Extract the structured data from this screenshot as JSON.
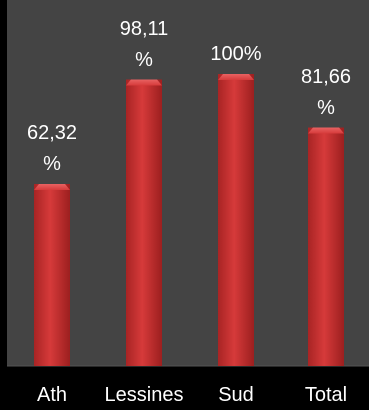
{
  "chart_data": {
    "type": "bar",
    "categories": [
      "Ath",
      "Lessines",
      "Sud",
      "Total"
    ],
    "values": [
      62.32,
      98.11,
      100,
      81.66
    ],
    "data_labels": [
      "62,32 %",
      "98,11 %",
      "100%",
      "81,66 %"
    ],
    "unit": "%",
    "ylim": [
      0,
      100
    ],
    "grid": false,
    "legend": "none",
    "colors": {
      "background": "#000000",
      "plot_area": "#444444",
      "bar": "#d63a3a",
      "bar_top": "#e86262",
      "text": "#ffffff"
    }
  }
}
